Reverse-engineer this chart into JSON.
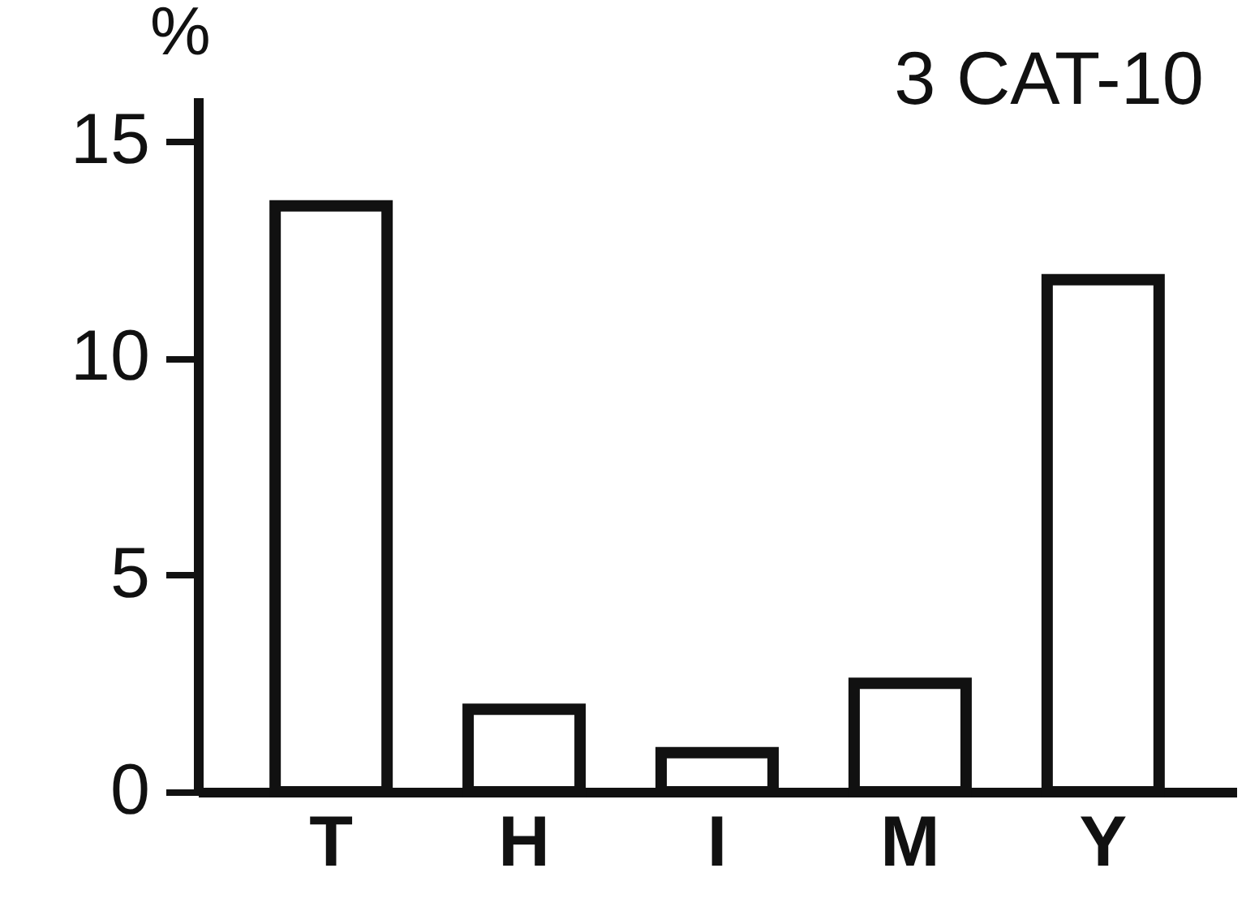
{
  "chart_data": {
    "type": "bar",
    "title": "3 CAT-10",
    "ylabel": "%",
    "categories": [
      "T",
      "H",
      "I",
      "M",
      "Y"
    ],
    "values": [
      13.5,
      1.9,
      0.9,
      2.5,
      11.8
    ],
    "color": "#ffffff",
    "ylim": [
      0,
      16
    ],
    "yticks": [
      0,
      5,
      10,
      15
    ],
    "grid": false
  }
}
